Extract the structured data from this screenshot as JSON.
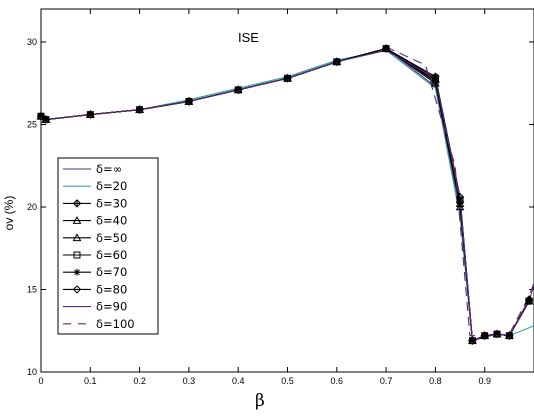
{
  "chart_data": {
    "type": "line",
    "title": "ISE",
    "xlabel": "β",
    "ylabel": "ov (%)",
    "xlim": [
      0,
      1
    ],
    "ylim": [
      10,
      32
    ],
    "xticks": [
      0,
      0.1,
      0.2,
      0.3,
      0.4,
      0.5,
      0.6,
      0.7,
      0.8,
      0.9
    ],
    "yticks": [
      10,
      15,
      20,
      25,
      30
    ],
    "xtick_labels": [
      "0",
      "0.1",
      "0.2",
      "0.3",
      "0.4",
      "0.5",
      "0.6",
      "0.7",
      "0.8",
      "0.9"
    ],
    "ytick_labels": [
      "10",
      "15",
      "20",
      "25",
      "30"
    ],
    "grid": false,
    "legend_position": "left",
    "series": [
      {
        "name": "δ=∞",
        "color": "#5b2a7a",
        "dash": "solid",
        "marker": "none",
        "x": [
          0,
          0.01,
          0.1,
          0.2,
          0.3,
          0.4,
          0.5,
          0.6,
          0.7,
          0.8,
          0.85,
          0.875,
          0.9,
          0.925,
          0.95,
          0.99,
          1.0
        ],
        "y": [
          25.5,
          25.3,
          25.6,
          25.9,
          26.4,
          27.1,
          27.8,
          28.8,
          29.6,
          27.3,
          19.6,
          11.9,
          12.1,
          12.3,
          12.2,
          14.3,
          15.3
        ]
      },
      {
        "name": "δ=20",
        "color": "#3aa3a6",
        "dash": "solid",
        "marker": "none",
        "x": [
          0,
          0.01,
          0.1,
          0.2,
          0.3,
          0.4,
          0.5,
          0.6,
          0.7,
          0.8,
          0.85,
          0.875,
          0.9,
          0.925,
          0.95,
          1.0
        ],
        "y": [
          25.5,
          25.3,
          25.6,
          25.9,
          26.5,
          27.2,
          27.9,
          28.9,
          29.5,
          27.2,
          19.4,
          11.9,
          12.2,
          12.3,
          12.2,
          12.8
        ]
      },
      {
        "name": "δ=30",
        "color": "#000000",
        "dash": "solid",
        "marker": "diamond-plus",
        "x": [
          0,
          0.01,
          0.1,
          0.2,
          0.3,
          0.4,
          0.5,
          0.6,
          0.7,
          0.8,
          0.85,
          0.875,
          0.9,
          0.925,
          0.95,
          0.99
        ],
        "y": [
          25.5,
          25.3,
          25.6,
          25.9,
          26.4,
          27.1,
          27.8,
          28.8,
          29.6,
          27.6,
          20.3,
          11.9,
          12.2,
          12.3,
          12.2,
          14.3
        ]
      },
      {
        "name": "δ=40",
        "color": "#000000",
        "dash": "solid",
        "marker": "triangle",
        "x": [
          0,
          0.01,
          0.1,
          0.2,
          0.3,
          0.4,
          0.5,
          0.6,
          0.7,
          0.8,
          0.85,
          0.875,
          0.9,
          0.925,
          0.95,
          0.99
        ],
        "y": [
          25.5,
          25.3,
          25.6,
          25.9,
          26.4,
          27.1,
          27.8,
          28.8,
          29.6,
          27.5,
          20.0,
          11.9,
          12.2,
          12.3,
          12.2,
          14.3
        ]
      },
      {
        "name": "δ=50",
        "color": "#000000",
        "dash": "solid",
        "marker": "triangle",
        "x": [
          0,
          0.01,
          0.1,
          0.2,
          0.3,
          0.4,
          0.5,
          0.6,
          0.7,
          0.8,
          0.85,
          0.875,
          0.9,
          0.925,
          0.95,
          0.99
        ],
        "y": [
          25.5,
          25.3,
          25.6,
          25.9,
          26.4,
          27.1,
          27.8,
          28.8,
          29.6,
          27.7,
          20.2,
          11.9,
          12.2,
          12.3,
          12.2,
          14.3
        ]
      },
      {
        "name": "δ=60",
        "color": "#000000",
        "dash": "solid",
        "marker": "square",
        "x": [
          0,
          0.01,
          0.1,
          0.2,
          0.3,
          0.4,
          0.5,
          0.6,
          0.7,
          0.8,
          0.85,
          0.875,
          0.9,
          0.925,
          0.95,
          0.99
        ],
        "y": [
          25.5,
          25.3,
          25.6,
          25.9,
          26.4,
          27.1,
          27.8,
          28.8,
          29.6,
          27.8,
          20.4,
          11.9,
          12.2,
          12.3,
          12.2,
          14.3
        ]
      },
      {
        "name": "δ=70",
        "color": "#000000",
        "dash": "solid",
        "marker": "star",
        "x": [
          0,
          0.01,
          0.1,
          0.2,
          0.3,
          0.4,
          0.5,
          0.6,
          0.7,
          0.8,
          0.85,
          0.875,
          0.9,
          0.925,
          0.95,
          0.99
        ],
        "y": [
          25.5,
          25.3,
          25.6,
          25.9,
          26.4,
          27.1,
          27.8,
          28.8,
          29.6,
          27.9,
          20.5,
          11.9,
          12.2,
          12.3,
          12.2,
          14.3
        ]
      },
      {
        "name": "δ=80",
        "color": "#000000",
        "dash": "solid",
        "marker": "diamond",
        "x": [
          0,
          0.01,
          0.1,
          0.2,
          0.3,
          0.4,
          0.5,
          0.6,
          0.7,
          0.8,
          0.85,
          0.875,
          0.9,
          0.925,
          0.95,
          0.99
        ],
        "y": [
          25.5,
          25.3,
          25.6,
          25.9,
          26.4,
          27.1,
          27.8,
          28.8,
          29.6,
          27.9,
          20.6,
          11.9,
          12.2,
          12.3,
          12.2,
          14.4
        ]
      },
      {
        "name": "δ=90",
        "color": "#5b2a7a",
        "dash": "solid",
        "marker": "none",
        "x": [
          0,
          0.01,
          0.1,
          0.2,
          0.3,
          0.4,
          0.5,
          0.6,
          0.7,
          0.8,
          0.85,
          0.875,
          0.9,
          0.925,
          0.95,
          0.99
        ],
        "y": [
          25.5,
          25.3,
          25.6,
          25.9,
          26.4,
          27.1,
          27.8,
          28.8,
          29.5,
          27.8,
          20.5,
          11.9,
          12.2,
          12.3,
          12.2,
          14.4
        ]
      },
      {
        "name": "δ=100",
        "color": "#5b2a7a",
        "dash": "dashed",
        "marker": "none",
        "x": [
          0.7,
          0.78,
          0.84,
          0.87,
          0.9,
          0.95,
          0.99,
          1.0
        ],
        "y": [
          29.7,
          28.6,
          22.5,
          12.2,
          12.2,
          12.3,
          14.6,
          15.4
        ]
      }
    ]
  }
}
